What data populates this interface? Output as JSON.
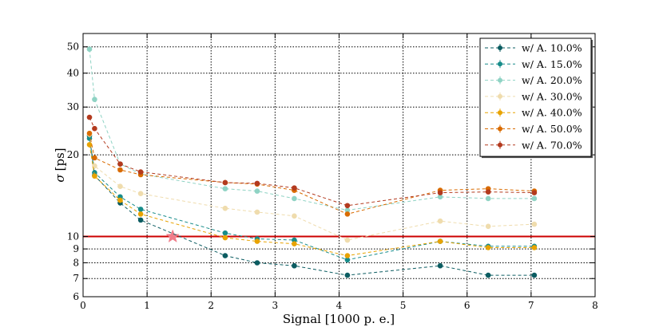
{
  "chart_data": {
    "type": "line",
    "xlabel": "Signal [1000 p. e.]",
    "ylabel": "σ [ps]",
    "ylabel_symbol": "σ",
    "ylabel_unit": "[ps]",
    "xlim": [
      0,
      8
    ],
    "ylim": [
      6,
      56
    ],
    "yscale": "log",
    "grid": true,
    "legend_position": "top-right",
    "xticks": [
      0,
      1,
      2,
      3,
      4,
      5,
      6,
      7,
      8
    ],
    "xtick_labels": [
      "0",
      "1",
      "2",
      "3",
      "4",
      "5",
      "6",
      "7",
      "8"
    ],
    "yticks": [
      6,
      7,
      8,
      9,
      10,
      20,
      30,
      40,
      50
    ],
    "ytick_labels": [
      "6",
      "7",
      "8",
      "9",
      "10",
      "20",
      "30",
      "40",
      "50"
    ],
    "reference_line": {
      "y": 10,
      "color": "#cc0000"
    },
    "reference_marker": {
      "x": 1.4,
      "y": 10,
      "shape": "star",
      "color": "#f07d8a"
    },
    "x": [
      0.1,
      0.18,
      0.58,
      0.9,
      2.22,
      2.72,
      3.3,
      4.13,
      5.58,
      6.33,
      7.05
    ],
    "series": [
      {
        "name": "w/ A. 10.0%",
        "color": "#0b5c61",
        "x": [
          0.1,
          0.18,
          0.58,
          0.9,
          2.22,
          2.72,
          3.3,
          4.13,
          5.58,
          6.33,
          7.05
        ],
        "values": [
          23.5,
          16.8,
          13.3,
          11.5,
          8.5,
          8.0,
          7.8,
          7.2,
          7.8,
          7.2,
          7.2
        ]
      },
      {
        "name": "w/ A. 15.0%",
        "color": "#178c8a",
        "x": [
          0.1,
          0.18,
          0.58,
          0.9,
          2.22,
          2.72,
          3.3,
          4.13,
          5.58,
          6.33,
          7.05
        ],
        "values": [
          23.0,
          17.2,
          14.0,
          12.6,
          10.3,
          9.8,
          9.7,
          8.2,
          9.6,
          9.2,
          9.2
        ]
      },
      {
        "name": "w/ A. 20.0%",
        "color": "#8fd3c4",
        "x": [
          0.1,
          0.18,
          0.58,
          0.9,
          2.22,
          2.72,
          3.3,
          4.13,
          5.58,
          6.33,
          7.05
        ],
        "values": [
          49.0,
          32.0,
          18.5,
          17.0,
          15.0,
          14.7,
          13.8,
          12.5,
          14.0,
          13.8,
          13.8
        ]
      },
      {
        "name": "w/ A. 30.0%",
        "color": "#efdcad",
        "x": [
          0.1,
          0.18,
          0.58,
          0.9,
          2.22,
          2.72,
          3.3,
          4.13,
          5.58,
          6.33,
          7.05
        ],
        "values": [
          23.8,
          18.2,
          15.3,
          14.4,
          12.7,
          12.3,
          11.9,
          9.7,
          11.4,
          10.9,
          11.1
        ]
      },
      {
        "name": "w/ A. 40.0%",
        "color": "#e8a300",
        "x": [
          0.1,
          0.18,
          0.58,
          0.9,
          2.22,
          2.72,
          3.3,
          4.13,
          5.58,
          6.33,
          7.05
        ],
        "values": [
          21.8,
          16.7,
          13.6,
          12.1,
          9.9,
          9.6,
          9.4,
          8.5,
          9.6,
          9.1,
          9.1
        ]
      },
      {
        "name": "w/ A. 50.0%",
        "color": "#d96b00",
        "x": [
          0.1,
          0.18,
          0.58,
          0.9,
          2.22,
          2.72,
          3.3,
          4.13,
          5.58,
          6.33,
          7.05
        ],
        "values": [
          24.0,
          19.5,
          17.6,
          16.9,
          15.8,
          15.6,
          14.8,
          12.1,
          14.8,
          15.0,
          14.7
        ]
      },
      {
        "name": "w/ A. 70.0%",
        "color": "#b33a1e",
        "x": [
          0.1,
          0.18,
          0.58,
          0.9,
          2.22,
          2.72,
          3.3,
          4.13,
          5.58,
          6.33,
          7.05
        ],
        "values": [
          27.5,
          25.0,
          18.5,
          17.3,
          15.8,
          15.7,
          15.1,
          13.0,
          14.5,
          14.6,
          14.5
        ]
      }
    ]
  }
}
